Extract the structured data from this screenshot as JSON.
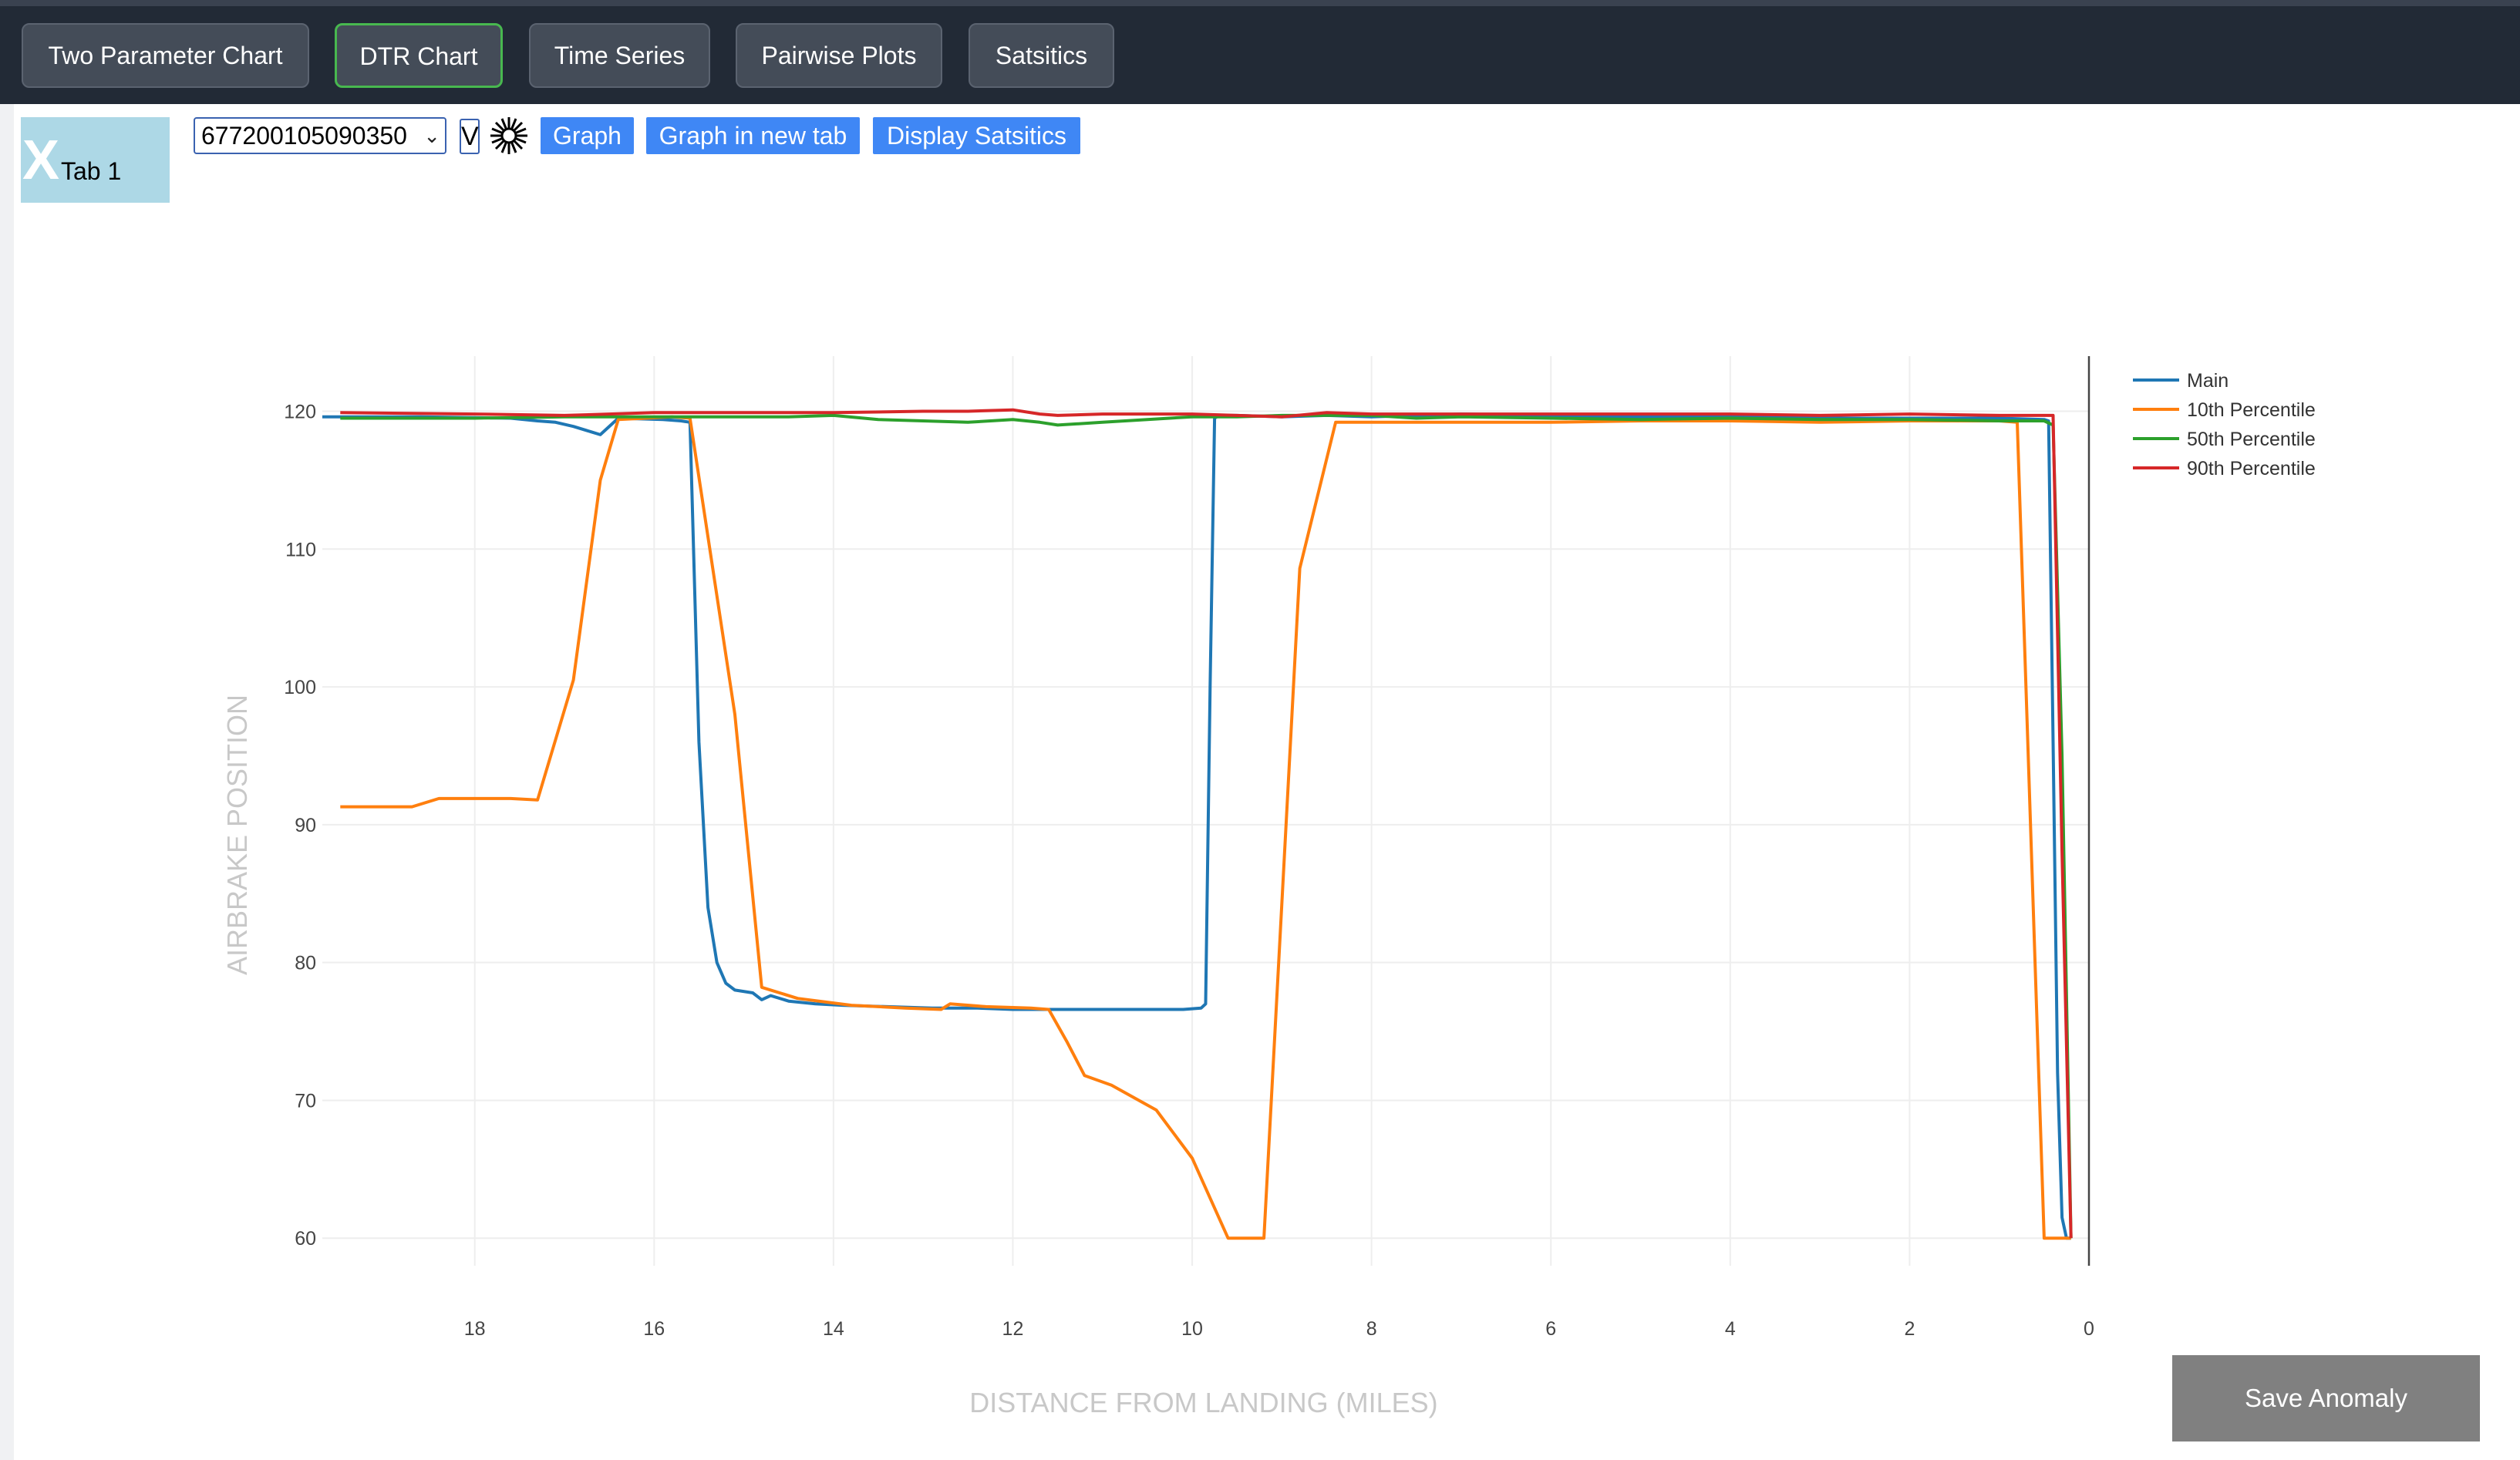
{
  "nav": {
    "buttons": [
      {
        "label": "Two Parameter Chart"
      },
      {
        "label": "DTR Chart",
        "active": true
      },
      {
        "label": "Time Series"
      },
      {
        "label": "Pairwise Plots"
      },
      {
        "label": "Satsitics"
      }
    ]
  },
  "tab": {
    "close_glyph": "X",
    "label": "Tab 1"
  },
  "controls": {
    "flight_id": "677200105090350",
    "v_label": "V",
    "gear_icon": "gear-icon",
    "graph_label": "Graph",
    "graph_new_tab_label": "Graph in new tab",
    "display_stats_label": "Display Satsitics"
  },
  "save_label": "Save Anomaly",
  "chart_data": {
    "type": "line",
    "xlabel": "DISTANCE FROM LANDING (MILES)",
    "ylabel": "AIRBRAKE POSITION",
    "x_reversed": true,
    "xlim": [
      19.7,
      0
    ],
    "ylim": [
      58,
      124
    ],
    "x_ticks": [
      18,
      16,
      14,
      12,
      10,
      8,
      6,
      4,
      2,
      0
    ],
    "y_ticks": [
      60,
      70,
      80,
      90,
      100,
      110,
      120
    ],
    "grid": true,
    "legend_position": "top-right",
    "series": [
      {
        "name": "Main",
        "color": "#1f77b4",
        "x": [
          19.7,
          18.6,
          17.6,
          17.3,
          17.1,
          16.9,
          16.7,
          16.6,
          16.4,
          15.9,
          15.7,
          15.6,
          15.5,
          15.4,
          15.3,
          15.2,
          15.1,
          14.9,
          14.8,
          14.7,
          14.5,
          14.2,
          13.9,
          13.4,
          12.9,
          12.4,
          12.0,
          11.5,
          11.0,
          10.5,
          10.1,
          9.9,
          9.85,
          9.8,
          9.75,
          9.7,
          9.5,
          9.0,
          8.5,
          8.0,
          7.5,
          7.0,
          6.0,
          5.0,
          4.0,
          3.0,
          2.0,
          1.0,
          0.5,
          0.45,
          0.4,
          0.35,
          0.3,
          0.25,
          0.2
        ],
        "y": [
          119.6,
          119.6,
          119.5,
          119.3,
          119.2,
          118.9,
          118.5,
          118.3,
          119.5,
          119.4,
          119.3,
          119.2,
          96.0,
          84.0,
          80.0,
          78.5,
          78.0,
          77.8,
          77.3,
          77.6,
          77.2,
          77.0,
          76.9,
          76.8,
          76.7,
          76.7,
          76.6,
          76.6,
          76.6,
          76.6,
          76.6,
          76.7,
          77.0,
          100.0,
          119.5,
          119.7,
          119.7,
          119.6,
          119.7,
          119.6,
          119.7,
          119.8,
          119.7,
          119.6,
          119.6,
          119.5,
          119.5,
          119.5,
          119.4,
          119.3,
          96.0,
          72.0,
          61.5,
          60.0,
          60.0
        ]
      },
      {
        "name": "10th Percentile",
        "color": "#ff7f0e",
        "x": [
          19.5,
          18.7,
          18.4,
          17.6,
          17.3,
          16.9,
          16.6,
          16.4,
          15.8,
          15.6,
          15.1,
          14.8,
          14.4,
          13.8,
          13.2,
          12.8,
          12.7,
          12.3,
          11.8,
          11.6,
          11.4,
          11.2,
          10.9,
          10.4,
          10.0,
          9.6,
          9.2,
          8.8,
          8.4,
          8.0,
          7.0,
          6.0,
          5.0,
          4.0,
          3.0,
          2.0,
          1.0,
          0.8,
          0.5,
          0.3,
          0.2
        ],
        "y": [
          91.3,
          91.3,
          91.9,
          91.9,
          91.8,
          100.5,
          115.0,
          119.4,
          119.6,
          119.5,
          98.0,
          78.2,
          77.4,
          76.9,
          76.7,
          76.6,
          77.0,
          76.8,
          76.7,
          76.6,
          74.3,
          71.8,
          71.1,
          69.3,
          65.8,
          60.0,
          60.0,
          108.6,
          119.2,
          119.2,
          119.2,
          119.2,
          119.3,
          119.3,
          119.2,
          119.3,
          119.3,
          119.2,
          60.0,
          60.0,
          60.0
        ]
      },
      {
        "name": "50th Percentile",
        "color": "#2ca02c",
        "x": [
          19.5,
          18.0,
          17.0,
          16.5,
          16.0,
          15.5,
          15.0,
          14.5,
          14.0,
          13.5,
          13.0,
          12.5,
          12.0,
          11.7,
          11.5,
          11.0,
          10.5,
          10.0,
          9.5,
          9.0,
          8.5,
          8.0,
          7.5,
          7.0,
          6.0,
          5.0,
          4.0,
          3.0,
          2.0,
          1.0,
          0.5,
          0.4,
          0.3,
          0.2
        ],
        "y": [
          119.5,
          119.5,
          119.6,
          119.6,
          119.6,
          119.6,
          119.6,
          119.6,
          119.7,
          119.4,
          119.3,
          119.2,
          119.4,
          119.2,
          119.0,
          119.2,
          119.4,
          119.6,
          119.6,
          119.7,
          119.7,
          119.7,
          119.5,
          119.6,
          119.5,
          119.4,
          119.5,
          119.4,
          119.4,
          119.3,
          119.3,
          119.0,
          95.0,
          60.0
        ]
      },
      {
        "name": "90th Percentile",
        "color": "#d62728",
        "x": [
          19.5,
          18.0,
          17.0,
          16.5,
          16.0,
          15.0,
          14.0,
          13.0,
          12.5,
          12.0,
          11.7,
          11.5,
          11.0,
          10.5,
          10.0,
          9.5,
          9.0,
          8.5,
          8.0,
          7.0,
          6.0,
          5.0,
          4.0,
          3.0,
          2.0,
          1.0,
          0.4,
          0.3,
          0.2
        ],
        "y": [
          119.9,
          119.8,
          119.7,
          119.8,
          119.9,
          119.9,
          119.9,
          120.0,
          120.0,
          120.1,
          119.8,
          119.7,
          119.8,
          119.8,
          119.8,
          119.7,
          119.6,
          119.9,
          119.8,
          119.8,
          119.8,
          119.8,
          119.8,
          119.7,
          119.8,
          119.7,
          119.7,
          88.0,
          60.0
        ]
      }
    ]
  }
}
